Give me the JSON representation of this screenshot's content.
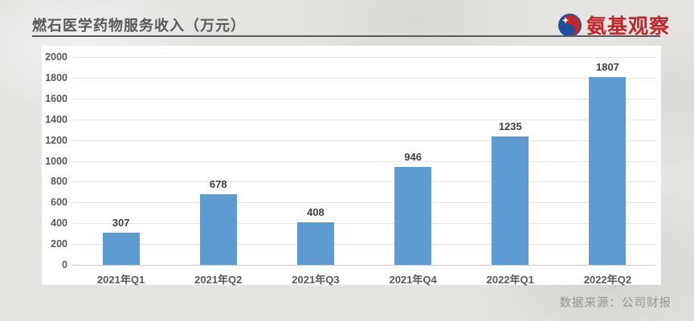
{
  "header": {
    "title": "燃石医学药物服务收入（万元）",
    "logo_text": "氨基观察",
    "logo_color": "#c0272d"
  },
  "footer": {
    "source": "数据来源：公司财报"
  },
  "chart_data": {
    "type": "bar",
    "title": "燃石医学药物服务收入（万元）",
    "categories": [
      "2021年Q1",
      "2021年Q2",
      "2021年Q3",
      "2021年Q4",
      "2022年Q1",
      "2022年Q2"
    ],
    "values": [
      307,
      678,
      408,
      946,
      1235,
      1807
    ],
    "xlabel": "",
    "ylabel": "",
    "ylim": [
      0,
      2000
    ],
    "ytick_step": 200,
    "bar_color": "#5f9bd3",
    "grid": true,
    "legend": "none",
    "data_labels": true
  }
}
